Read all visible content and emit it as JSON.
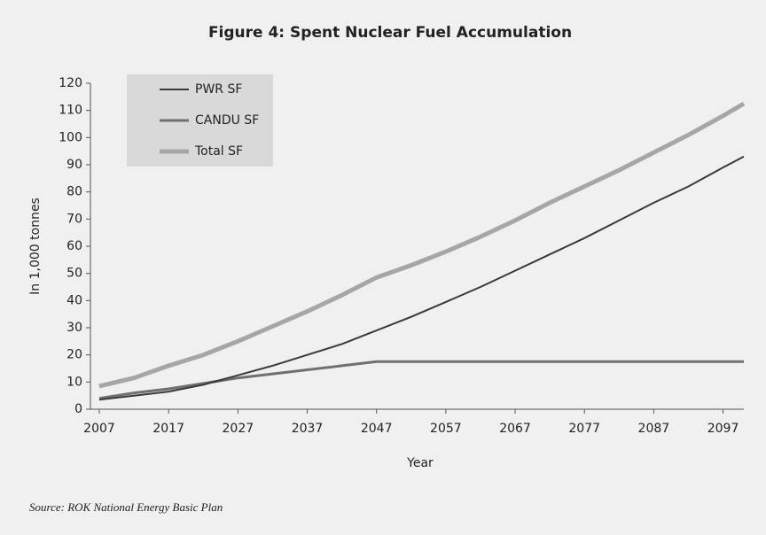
{
  "chart_data": {
    "type": "line",
    "title": "Figure 4: Spent Nuclear Fuel Accumulation",
    "xlabel": "Year",
    "ylabel": "In 1,000 tonnes",
    "source": "Source: ROK National Energy Basic Plan",
    "x": [
      2007,
      2012,
      2017,
      2022,
      2027,
      2032,
      2037,
      2042,
      2047,
      2052,
      2057,
      2062,
      2067,
      2072,
      2077,
      2082,
      2087,
      2092,
      2097,
      2100
    ],
    "series": [
      {
        "name": "PWR SF",
        "color": "#3a3a3a",
        "values": [
          3.5,
          5,
          6.5,
          9,
          12.5,
          16,
          20,
          24,
          29,
          34,
          39.5,
          45,
          51,
          57,
          63,
          69.5,
          76,
          82,
          89,
          93
        ]
      },
      {
        "name": "CANDU SF",
        "color": "#707070",
        "values": [
          4,
          6,
          7.5,
          9.5,
          11.5,
          13,
          14.5,
          16,
          17.5,
          17.5,
          17.5,
          17.5,
          17.5,
          17.5,
          17.5,
          17.5,
          17.5,
          17.5,
          17.5,
          17.5
        ]
      },
      {
        "name": "Total SF",
        "color": "#a6a6a6",
        "values": [
          8.5,
          11.5,
          16,
          20,
          25,
          30.5,
          36,
          42,
          48.5,
          53,
          58,
          63.5,
          69.5,
          76,
          82,
          88,
          94.5,
          101,
          108,
          112.5
        ]
      }
    ],
    "xlim": [
      2007,
      2100
    ],
    "xticks": [
      2007,
      2017,
      2027,
      2037,
      2047,
      2057,
      2067,
      2077,
      2087,
      2097
    ],
    "ylim": [
      0,
      120
    ],
    "yticks": [
      0,
      10,
      20,
      30,
      40,
      50,
      60,
      70,
      80,
      90,
      100,
      110,
      120
    ],
    "grid": false,
    "legend": "upper left"
  }
}
